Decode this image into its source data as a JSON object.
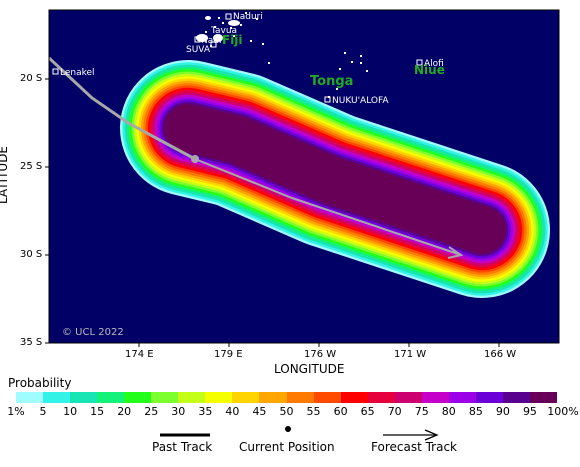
{
  "map": {
    "xlabel": "LONGITUDE",
    "ylabel": "LATITUDE",
    "x_ticks": [
      "174 E",
      "179 E",
      "176 W",
      "171 W",
      "166 W"
    ],
    "y_ticks": [
      "20 S",
      "25 S",
      "30 S",
      "35 S"
    ],
    "copyright": "© UCL 2022",
    "colors": {
      "ocean": "#000066",
      "land": "#ffffff",
      "track": "#a8a8a8",
      "region_label": "#22aa22"
    },
    "places": [
      {
        "name": "Naduri"
      },
      {
        "name": "Tavua"
      },
      {
        "name": "Nadi"
      },
      {
        "name": "SUVA"
      },
      {
        "name": "Lenakel"
      },
      {
        "name": "Alofi"
      },
      {
        "name": "NUKU'ALOFA"
      }
    ],
    "regions": [
      {
        "name": "Fiji"
      },
      {
        "name": "Tonga"
      },
      {
        "name": "Niue"
      }
    ]
  },
  "legend": {
    "title": "Probability",
    "labels": [
      "1%",
      "5",
      "10",
      "15",
      "20",
      "25",
      "30",
      "35",
      "40",
      "45",
      "50",
      "55",
      "60",
      "65",
      "70",
      "75",
      "80",
      "85",
      "90",
      "95",
      "100%"
    ],
    "colors": [
      "#9ffcff",
      "#33f3e6",
      "#18e5b3",
      "#14f27a",
      "#23ff1a",
      "#7dff2d",
      "#c4ff19",
      "#f5ff00",
      "#ffd400",
      "#ffa600",
      "#ff7a00",
      "#ff4b00",
      "#ff0000",
      "#e6003c",
      "#cc006f",
      "#c500c8",
      "#9b00e6",
      "#6c00d8",
      "#5a008f",
      "#680058"
    ]
  },
  "key": {
    "past_track": "Past Track",
    "current_position": "Current Position",
    "forecast_track": "Forecast Track"
  }
}
